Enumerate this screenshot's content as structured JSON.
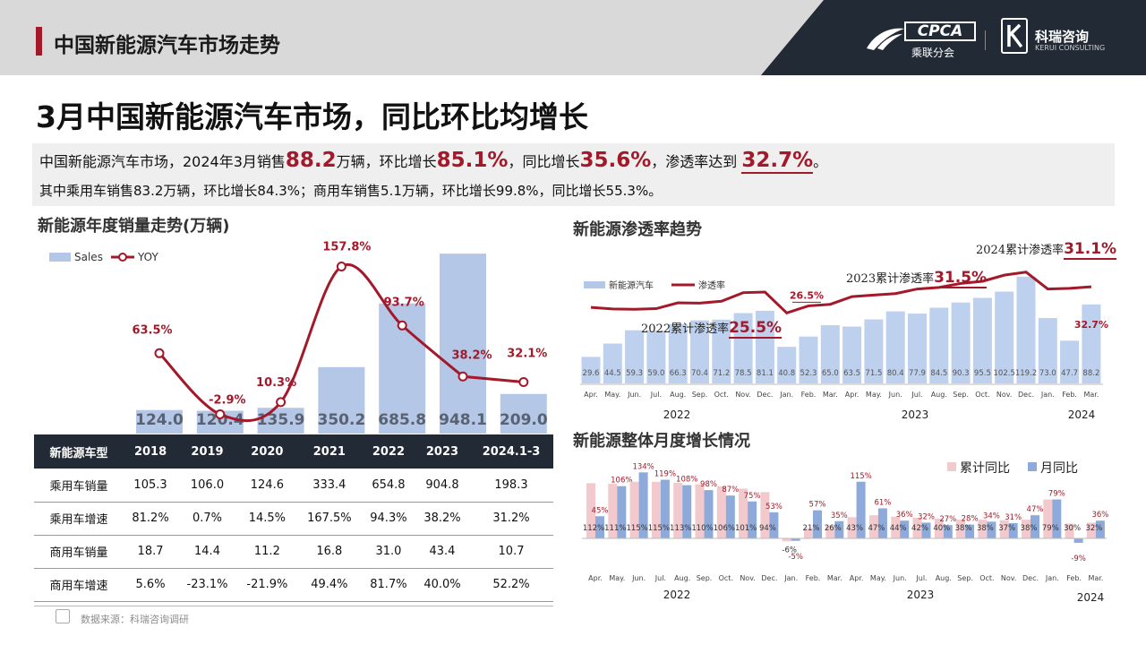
{
  "header": {
    "title": "中国新能源汽车市场走势",
    "logo_cpca": "CPCA",
    "logo_cpca_sub": "乘联分会",
    "logo_kerui": "科瑞咨询",
    "logo_kerui_en": "KERUI CONSULTING"
  },
  "main_title": "3月中国新能源汽车市场，同比环比均增长",
  "summary": {
    "l1_a": "中国新能源汽车市场，2024年3月销售",
    "l1_v1": "88.2",
    "l1_b": "万辆，环比增长",
    "l1_v2": "85.1%",
    "l1_c": "，同比增长",
    "l1_v3": "35.6%",
    "l1_d": "，渗透率达到 ",
    "l1_v4": "32.7%",
    "l1_e": "。",
    "l2": "其中乘用车销售83.2万辆，环比增长84.3%；商用车销售5.1万辆，环比增长99.8%，同比增长55.3%。"
  },
  "annual": {
    "title": "新能源年度销量走势(万辆)",
    "legend_sales": "Sales",
    "legend_yoy": "YOY",
    "colors": {
      "bar": "#b4c7e7",
      "line": "#a3192a"
    }
  },
  "penetration": {
    "title": "新能源渗透率趋势",
    "legend_bar": "新能源汽车",
    "legend_line": "渗透率",
    "callout_2022_text": "2022累计渗透率",
    "callout_2022_val": "25.5%",
    "callout_2023_text": "2023累计渗透率",
    "callout_2023_val": "31.5%",
    "callout_2024_text": "2024累计渗透率",
    "callout_2024_val": "31.1%",
    "label_feb22": "26.5%",
    "label_last": "32.7%"
  },
  "growth": {
    "title": "新能源整体月度增长情况",
    "legend_cum": "累计同比",
    "legend_mon": "月同比",
    "colors": {
      "cum": "#f2c9cc",
      "mon": "#8eaadb"
    }
  },
  "table": {
    "headers": [
      "新能源车型",
      "2018",
      "2019",
      "2020",
      "2021",
      "2022",
      "2023",
      "2024.1-3"
    ],
    "rows": [
      [
        "乘用车销量",
        "105.3",
        "106.0",
        "124.6",
        "333.4",
        "654.8",
        "904.8",
        "198.3"
      ],
      [
        "乘用车增速",
        "81.2%",
        "0.7%",
        "14.5%",
        "167.5%",
        "94.3%",
        "38.2%",
        "31.2%"
      ],
      [
        "商用车销量",
        "18.7",
        "14.4",
        "11.2",
        "16.8",
        "31.0",
        "43.4",
        "10.7"
      ],
      [
        "商用车增速",
        "5.6%",
        "-23.1%",
        "-21.9%",
        "49.4%",
        "81.7%",
        "40.0%",
        "52.2%"
      ]
    ]
  },
  "source": "数据来源：科瑞咨询调研",
  "chart_data": [
    {
      "type": "bar",
      "title": "新能源年度销量走势(万辆)",
      "categories": [
        "2018",
        "2019",
        "2020",
        "2021",
        "2022",
        "2023",
        "2024.1-3"
      ],
      "series": [
        {
          "name": "Sales",
          "values": [
            124.0,
            120.4,
            135.9,
            350.2,
            685.8,
            948.1,
            209.0
          ],
          "labels": [
            "124.0",
            "120.4",
            "135.9",
            "350.2",
            "685.8",
            "948.1",
            "209.0"
          ]
        },
        {
          "name": "YOY",
          "type": "line",
          "values": [
            63.5,
            -2.9,
            10.3,
            157.8,
            93.7,
            38.2,
            32.1
          ],
          "labels": [
            "63.5%",
            "-2.9%",
            "10.3%",
            "157.8%",
            "93.7%",
            "38.2%",
            "32.1%"
          ]
        }
      ],
      "ylim": [
        0,
        1000
      ],
      "legend": "top-left"
    },
    {
      "type": "bar",
      "title": "新能源渗透率趋势",
      "categories": [
        "Apr.",
        "May.",
        "Jun.",
        "Jul.",
        "Aug.",
        "Sep.",
        "Oct.",
        "Nov.",
        "Dec.",
        "Jan.",
        "Feb.",
        "Mar.",
        "Apr.",
        "May.",
        "Jun.",
        "Jul.",
        "Aug.",
        "Sep.",
        "Oct.",
        "Nov.",
        "Dec.",
        "Jan.",
        "Feb.",
        "Mar."
      ],
      "year_labels": [
        "2022",
        "2023",
        "2024"
      ],
      "series": [
        {
          "name": "新能源汽车",
          "values": [
            29.6,
            44.5,
            59.3,
            59.0,
            66.3,
            70.4,
            71.2,
            78.5,
            81.1,
            40.8,
            52.3,
            65.0,
            63.5,
            71.5,
            80.4,
            77.9,
            84.5,
            90.3,
            95.5,
            102.5,
            119.2,
            73.0,
            47.7,
            88.2
          ],
          "labels": [
            "29.6",
            "44.5",
            "59.3",
            "59.0",
            "66.3",
            "70.4",
            "71.2",
            "78.5",
            "81.1",
            "40.8",
            "52.3",
            "65.0",
            "63.5",
            "71.5",
            "80.4",
            "77.9",
            "84.5",
            "90.3",
            "95.5",
            "102.5",
            "119.2",
            "73.0",
            "47.7",
            "88.2"
          ]
        },
        {
          "name": "渗透率",
          "type": "line",
          "values": [
            26.0,
            25.5,
            25.4,
            25.6,
            27.5,
            27.4,
            28.0,
            30.8,
            31.0,
            24.2,
            26.5,
            27.0,
            29.5,
            30.0,
            30.5,
            32.0,
            32.5,
            33.8,
            34.5,
            36.5,
            37.5,
            32.0,
            32.2,
            32.7
          ]
        }
      ],
      "ylim": [
        0,
        130
      ],
      "legend": "top-left"
    },
    {
      "type": "bar",
      "title": "新能源整体月度增长情况",
      "categories": [
        "Apr.",
        "May.",
        "Jun.",
        "Jul.",
        "Aug.",
        "Sep.",
        "Oct.",
        "Nov.",
        "Dec.",
        "Jan.",
        "Feb.",
        "Mar.",
        "Apr.",
        "May.",
        "Jun.",
        "Jul.",
        "Aug.",
        "Sep.",
        "Oct.",
        "Nov.",
        "Dec.",
        "Jan.",
        "Feb.",
        "Mar."
      ],
      "year_labels": [
        "2022",
        "2023",
        "2024"
      ],
      "series": [
        {
          "name": "累计同比",
          "values": [
            112,
            111,
            115,
            115,
            113,
            110,
            106,
            101,
            94,
            -6,
            21,
            26,
            43,
            47,
            44,
            42,
            40,
            38,
            38,
            37,
            38,
            79,
            30,
            32
          ],
          "labels": [
            "112%",
            "111%",
            "115%",
            "115%",
            "113%",
            "110%",
            "106%",
            "101%",
            "94%",
            "-6%",
            "21%",
            "26%",
            "43%",
            "47%",
            "44%",
            "42%",
            "40%",
            "38%",
            "38%",
            "37%",
            "38%",
            "79%",
            "30%",
            "32%"
          ]
        },
        {
          "name": "月同比",
          "values": [
            45,
            106,
            134,
            119,
            108,
            98,
            87,
            75,
            53,
            -5,
            57,
            35,
            115,
            61,
            36,
            32,
            27,
            28,
            34,
            31,
            47,
            79,
            -9,
            36
          ],
          "labels": [
            "45%",
            "106%",
            "134%",
            "119%",
            "108%",
            "98%",
            "87%",
            "75%",
            "53%",
            "-5%",
            "57%",
            "35%",
            "115%",
            "61%",
            "36%",
            "32%",
            "27%",
            "28%",
            "34%",
            "31%",
            "47%",
            "79%",
            "-9%",
            "36%"
          ]
        }
      ],
      "ylim": [
        -15,
        140
      ],
      "legend": "top-right"
    }
  ]
}
